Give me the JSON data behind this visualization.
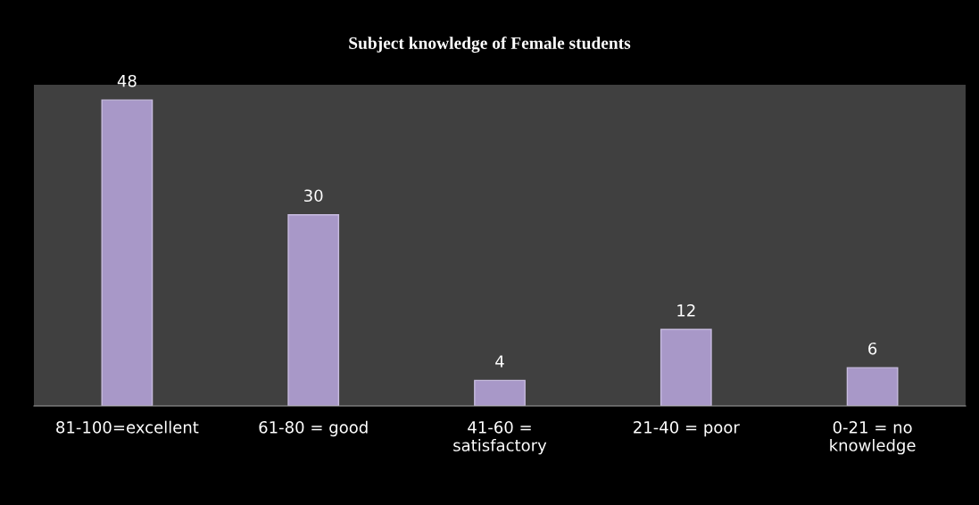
{
  "chart_data": {
    "type": "bar",
    "title": "Subject knowledge of Female students",
    "categories": [
      "81-100=excellent",
      "61-80 = good",
      "41-60 =\nsatisfactory",
      "21-40 = poor",
      "0-21 = no\nknowledge"
    ],
    "values": [
      48,
      30,
      4,
      12,
      6
    ],
    "color": "#a898c8",
    "data_labels": true,
    "grid": false,
    "legend": false
  }
}
